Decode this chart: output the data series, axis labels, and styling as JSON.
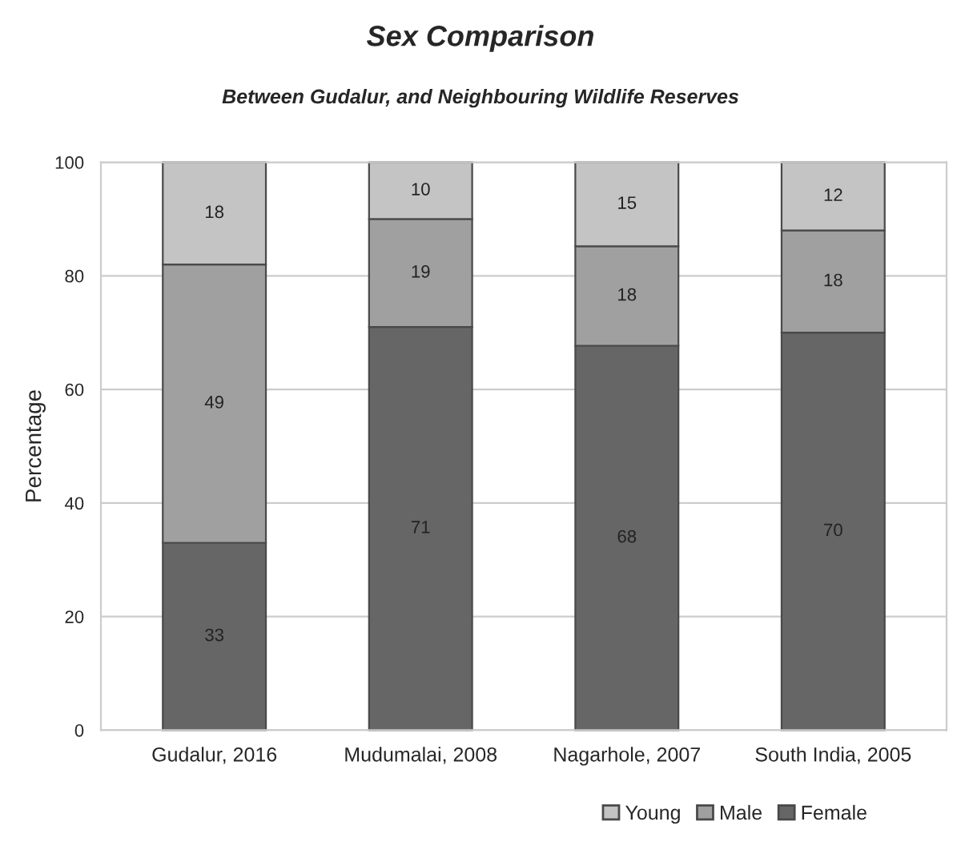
{
  "chart_data": {
    "type": "bar",
    "stacked": true,
    "title": "Sex Comparison",
    "subtitle": "Between Gudalur, and Neighbouring Wildlife Reserves",
    "ylabel": "Percentage",
    "categories": [
      "Gudalur, 2016",
      "Mudumalai, 2008",
      "Nagarhole, 2007",
      "South India, 2005"
    ],
    "series": [
      {
        "name": "Female",
        "color": "#666666",
        "values": [
          33,
          71,
          67.7,
          70
        ],
        "value_labels": [
          "33",
          "71",
          "68",
          "70"
        ]
      },
      {
        "name": "Male",
        "color": "#a0a0a0",
        "values": [
          49,
          19,
          17.5,
          18
        ],
        "value_labels": [
          "49",
          "19",
          "18",
          "18"
        ]
      },
      {
        "name": "Young",
        "color": "#c4c4c4",
        "values": [
          18,
          10,
          14.8,
          12
        ],
        "value_labels": [
          "18",
          "10",
          "15",
          "12"
        ]
      }
    ],
    "ylim": [
      0,
      100
    ],
    "yticks": [
      0,
      20,
      40,
      60,
      80,
      100
    ],
    "grid": "y",
    "legend": "bottom"
  }
}
